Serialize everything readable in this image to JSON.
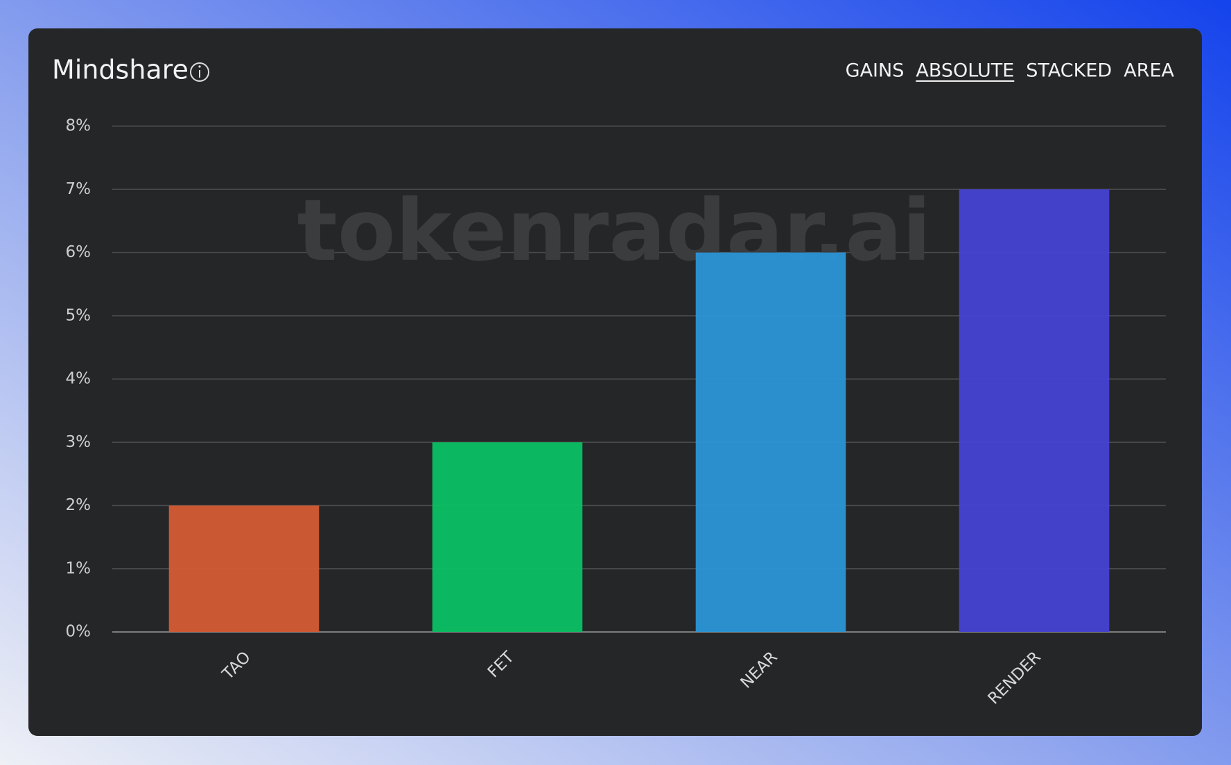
{
  "chart_data": {
    "type": "bar",
    "title": "Mindshare",
    "watermark": "tokenradar.ai",
    "tabs": [
      "GAINS",
      "ABSOLUTE",
      "STACKED",
      "AREA"
    ],
    "active_tab": "ABSOLUTE",
    "categories": [
      "TAO",
      "FET",
      "NEAR",
      "RENDER"
    ],
    "values": [
      2,
      3,
      6,
      7
    ],
    "colors": [
      "#d35b33",
      "#0abf63",
      "#2b95d6",
      "#4542d3"
    ],
    "ylim": [
      0,
      8
    ],
    "yticks": [
      {
        "value": 0,
        "label": "0%"
      },
      {
        "value": 1,
        "label": "1%"
      },
      {
        "value": 2,
        "label": "2%"
      },
      {
        "value": 3,
        "label": "3%"
      },
      {
        "value": 4,
        "label": "4%"
      },
      {
        "value": 5,
        "label": "5%"
      },
      {
        "value": 6,
        "label": "6%"
      },
      {
        "value": 7,
        "label": "7%"
      },
      {
        "value": 8,
        "label": "8%"
      }
    ],
    "grid": true
  }
}
